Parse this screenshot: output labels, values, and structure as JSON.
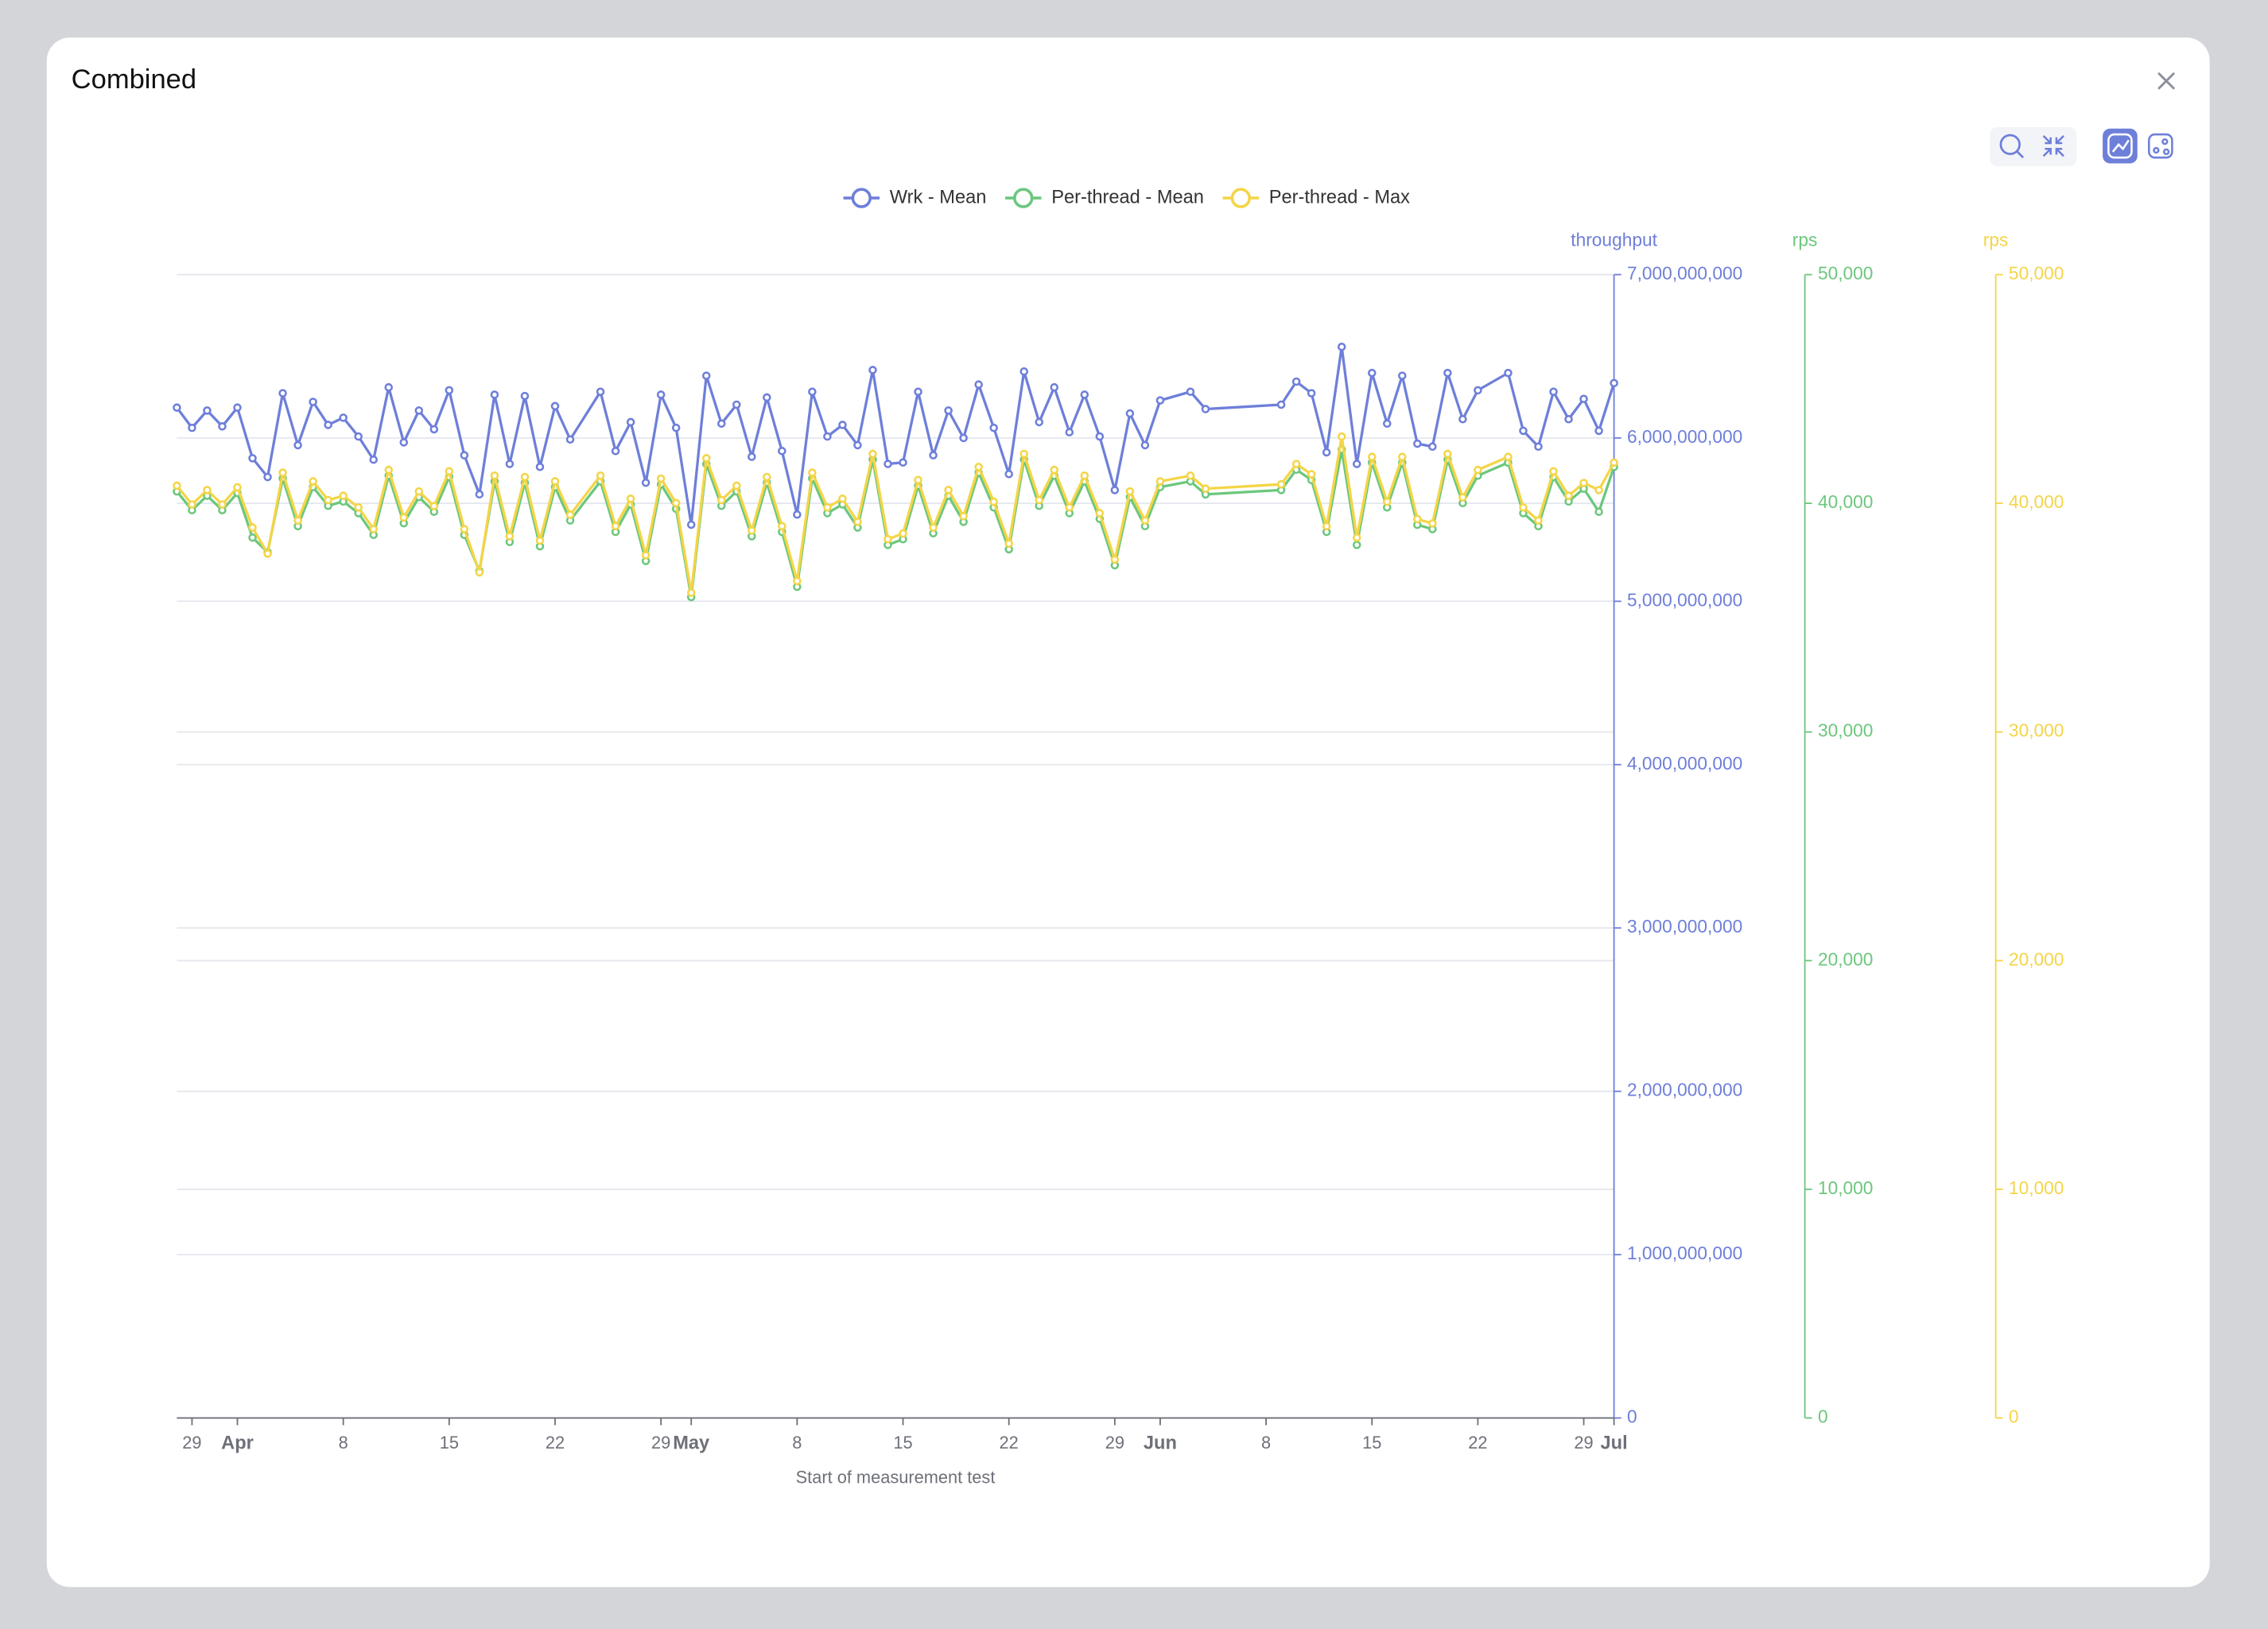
{
  "title": "Combined",
  "chart_data": {
    "type": "line",
    "x_label": "Start of measurement test",
    "y_label": "throughput",
    "y2_label": "rps",
    "y3_label": "rps",
    "xlim": [
      "03-28",
      "07-01"
    ],
    "xticks": [
      {
        "value": "03-29",
        "label": "29"
      },
      {
        "value": "04-01",
        "label": "Apr"
      },
      {
        "value": "04-08",
        "label": "8"
      },
      {
        "value": "04-15",
        "label": "15"
      },
      {
        "value": "04-22",
        "label": "22"
      },
      {
        "value": "04-29",
        "label": "29"
      },
      {
        "value": "05-01",
        "label": "May"
      },
      {
        "value": "05-08",
        "label": "8"
      },
      {
        "value": "05-15",
        "label": "15"
      },
      {
        "value": "05-22",
        "label": "22"
      },
      {
        "value": "05-29",
        "label": "29"
      },
      {
        "value": "06-01",
        "label": "Jun"
      },
      {
        "value": "06-08",
        "label": "8"
      },
      {
        "value": "06-15",
        "label": "15"
      },
      {
        "value": "06-22",
        "label": "22"
      },
      {
        "value": "06-29",
        "label": "29"
      },
      {
        "value": "07-01",
        "label": "Jul"
      }
    ],
    "ylim": [
      0,
      7000000000
    ],
    "yticks": [
      0,
      {
        "value": 1000000000,
        "label": "1,000,000,000"
      },
      {
        "value": 2000000000,
        "label": "2,000,000,000"
      },
      {
        "value": 3000000000,
        "label": "3,000,000,000"
      },
      {
        "value": 4000000000,
        "label": "4,000,000,000"
      },
      {
        "value": 5000000000,
        "label": "5,000,000,000"
      },
      {
        "value": 6000000000,
        "label": "6,000,000,000"
      },
      {
        "value": 7000000000,
        "label": "7,000,000,000"
      }
    ],
    "y2lim": [
      0,
      50000
    ],
    "y2ticks": [
      0,
      {
        "value": 10000,
        "label": "10,000"
      },
      {
        "value": 20000,
        "label": "20,000"
      },
      {
        "value": 30000,
        "label": "30,000"
      },
      {
        "value": 40000,
        "label": "40,000"
      },
      {
        "value": 50000,
        "label": "50,000"
      }
    ],
    "y3lim": [
      0,
      50000
    ],
    "y3ticks": [
      0,
      {
        "value": 10000,
        "label": "10,000"
      },
      {
        "value": 20000,
        "label": "20,000"
      },
      {
        "value": 30000,
        "label": "30,000"
      },
      {
        "value": 40000,
        "label": "40,000"
      },
      {
        "value": 50000,
        "label": "50,000"
      }
    ],
    "grid": true,
    "legend": "top",
    "x": [
      "03-28",
      "03-29",
      "03-30",
      "03-31",
      "04-01",
      "04-02",
      "04-03",
      "04-04",
      "04-05",
      "04-06",
      "04-07",
      "04-08",
      "04-09",
      "04-10",
      "04-11",
      "04-12",
      "04-13",
      "04-14",
      "04-15",
      "04-16",
      "04-17",
      "04-18",
      "04-19",
      "04-20",
      "04-21",
      "04-22",
      "04-23",
      "04-25",
      "04-26",
      "04-27",
      "04-28",
      "04-29",
      "04-30",
      "05-01",
      "05-02",
      "05-03",
      "05-04",
      "05-05",
      "05-06",
      "05-07",
      "05-08",
      "05-09",
      "05-10",
      "05-11",
      "05-12",
      "05-13",
      "05-14",
      "05-15",
      "05-16",
      "05-17",
      "05-18",
      "05-19",
      "05-20",
      "05-21",
      "05-22",
      "05-23",
      "05-24",
      "05-25",
      "05-26",
      "05-27",
      "05-28",
      "05-29",
      "05-30",
      "05-31",
      "06-01",
      "06-03",
      "06-04",
      "06-09",
      "06-10",
      "06-11",
      "06-12",
      "06-13",
      "06-14",
      "06-15",
      "06-16",
      "06-17",
      "06-18",
      "06-19",
      "06-20",
      "06-21",
      "06-22",
      "06-24",
      "06-25",
      "06-26",
      "06-27",
      "06-28",
      "06-29",
      "06-30",
      "07-01"
    ],
    "series": [
      {
        "name": "Wrk - Mean",
        "color": "#6e7fd9",
        "axis": "y",
        "values": [
          6186000000,
          6062000000,
          6168000000,
          6071000000,
          6186000000,
          5876000000,
          5761000000,
          6274000000,
          5956000000,
          6221000000,
          6080000000,
          6124000000,
          6009000000,
          5867000000,
          6310000000,
          5973000000,
          6168000000,
          6053000000,
          6292000000,
          5894000000,
          5655000000,
          6265000000,
          5841000000,
          6257000000,
          5823000000,
          6195000000,
          5991000000,
          6283000000,
          5920000000,
          6097000000,
          5726000000,
          6265000000,
          6062000000,
          5469000000,
          6381000000,
          6088000000,
          6204000000,
          5885000000,
          6248000000,
          5920000000,
          5531000000,
          6283000000,
          6009000000,
          6080000000,
          5956000000,
          6416000000,
          5841000000,
          5850000000,
          6283000000,
          5894000000,
          6168000000,
          6000000000,
          6327000000,
          6062000000,
          5779000000,
          6407000000,
          6097000000,
          6310000000,
          6035000000,
          6265000000,
          6009000000,
          5681000000,
          6150000000,
          5956000000,
          6230000000,
          6283000000,
          6177000000,
          6204000000,
          6345000000,
          6274000000,
          5912000000,
          6558000000,
          5841000000,
          6398000000,
          6088000000,
          6381000000,
          5965000000,
          5947000000,
          6398000000,
          6115000000,
          6292000000,
          6398000000,
          6044000000,
          5947000000,
          6283000000,
          6115000000,
          6239000000,
          6044000000,
          6336000000
        ]
      },
      {
        "name": "Per-thread - Mean",
        "color": "#6cc77d",
        "axis": "y2",
        "values": [
          40520,
          39700,
          40330,
          39700,
          40450,
          38500,
          37860,
          41090,
          39000,
          40710,
          39890,
          40080,
          39570,
          38620,
          41210,
          39130,
          40270,
          39630,
          41150,
          38620,
          37040,
          40960,
          38310,
          40900,
          38120,
          40710,
          39250,
          40960,
          38750,
          39950,
          37480,
          40830,
          39760,
          35900,
          41720,
          39890,
          40520,
          38560,
          40900,
          38750,
          36350,
          41090,
          39570,
          39950,
          38940,
          41910,
          38180,
          38430,
          40770,
          38690,
          40330,
          39190,
          41340,
          39820,
          37990,
          41910,
          39890,
          41210,
          39570,
          40960,
          39320,
          37290,
          40270,
          39000,
          40710,
          40960,
          40390,
          40580,
          41470,
          41020,
          38750,
          42350,
          38180,
          41780,
          39820,
          41780,
          39060,
          38870,
          41910,
          40010,
          41210,
          41780,
          39570,
          39000,
          41150,
          40080,
          40640,
          39630,
          41590
        ]
      },
      {
        "name": "Per-thread - Max",
        "color": "#f4d548",
        "axis": "y3",
        "values": [
          40770,
          39950,
          40580,
          39950,
          40700,
          38940,
          37800,
          41340,
          39250,
          40960,
          40140,
          40330,
          39820,
          38870,
          41460,
          39380,
          40520,
          39880,
          41400,
          38870,
          36980,
          41210,
          38560,
          41150,
          38370,
          40960,
          39500,
          41210,
          39000,
          40200,
          37730,
          41080,
          40010,
          36090,
          41970,
          40140,
          40770,
          38810,
          41150,
          39000,
          36600,
          41340,
          39820,
          40200,
          39190,
          42160,
          38430,
          38680,
          41020,
          38940,
          40580,
          39440,
          41590,
          40070,
          38240,
          42160,
          40140,
          41460,
          39820,
          41210,
          39570,
          37540,
          40520,
          39250,
          40960,
          41210,
          40640,
          40830,
          41720,
          41270,
          39000,
          42920,
          38500,
          42030,
          40070,
          42030,
          39310,
          39120,
          42160,
          40260,
          41460,
          42030,
          39820,
          39250,
          41400,
          40330,
          40890,
          40580,
          41780
        ]
      }
    ]
  }
}
